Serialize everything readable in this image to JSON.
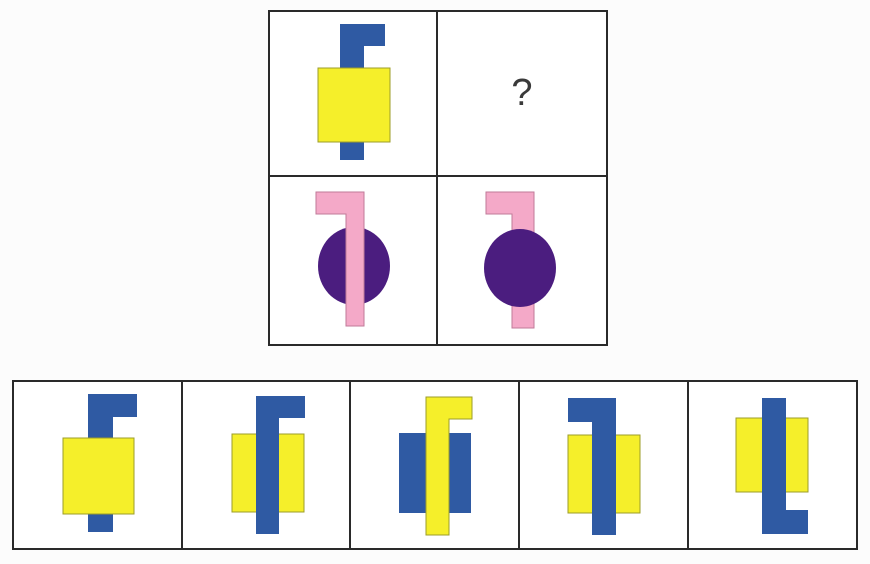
{
  "puzzle": {
    "question_mark": "?"
  },
  "colors": {
    "blue": "#2f5aa3",
    "yellow": "#f5ef2a",
    "pink": "#f4a9c8",
    "purple": "#4b1d7f",
    "border": "#2a2a2a"
  },
  "options": [
    {
      "icon": "blue-hook-over-yellow-square-icon"
    },
    {
      "icon": "blue-hook-over-yellow-rect-icon"
    },
    {
      "icon": "yellow-hook-over-blue-rect-icon"
    },
    {
      "icon": "blue-reversed-hook-over-yellow-rect-icon"
    },
    {
      "icon": "blue-bottom-hook-over-yellow-rect-icon"
    }
  ]
}
